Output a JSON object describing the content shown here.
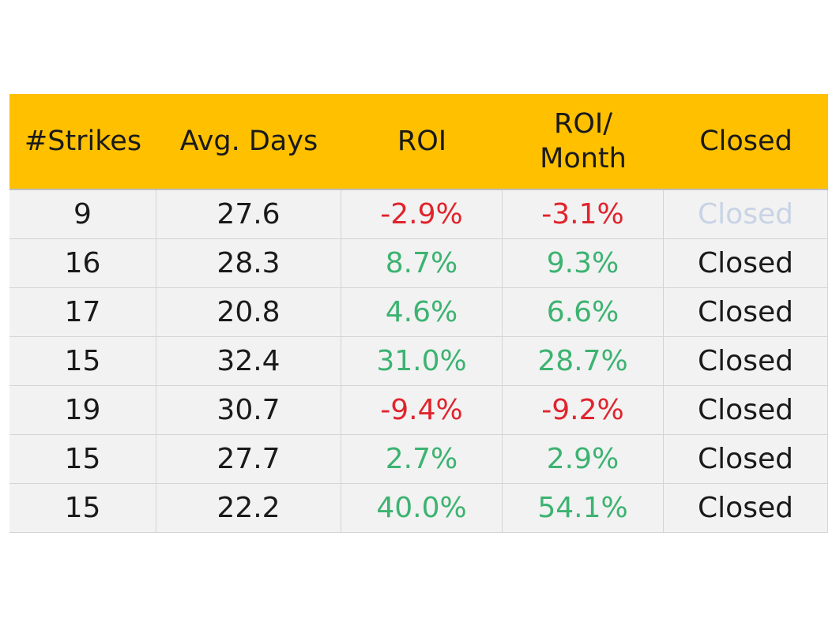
{
  "table": {
    "headers": [
      "#Strikes",
      "Avg. Days",
      "ROI",
      "ROI/\nMonth",
      "Closed"
    ],
    "rows": [
      {
        "strikes": "9",
        "avg_days": "27.6",
        "roi": "-2.9%",
        "roi_month": "-3.1%",
        "status": "Closed"
      },
      {
        "strikes": "16",
        "avg_days": "28.3",
        "roi": "8.7%",
        "roi_month": "9.3%",
        "status": "Closed"
      },
      {
        "strikes": "17",
        "avg_days": "20.8",
        "roi": "4.6%",
        "roi_month": "6.6%",
        "status": "Closed"
      },
      {
        "strikes": "15",
        "avg_days": "32.4",
        "roi": "31.0%",
        "roi_month": "28.7%",
        "status": "Closed"
      },
      {
        "strikes": "19",
        "avg_days": "30.7",
        "roi": "-9.4%",
        "roi_month": "-9.2%",
        "status": "Closed"
      },
      {
        "strikes": "15",
        "avg_days": "27.7",
        "roi": "2.7%",
        "roi_month": "2.9%",
        "status": "Closed"
      },
      {
        "strikes": "15",
        "avg_days": "22.2",
        "roi": "40.0%",
        "roi_month": "54.1%",
        "status": "Closed"
      }
    ]
  },
  "colors": {
    "header_bg": "#ffc000",
    "positive": "#3cb371",
    "negative": "#e0242c",
    "row_bg": "#f2f2f2"
  }
}
